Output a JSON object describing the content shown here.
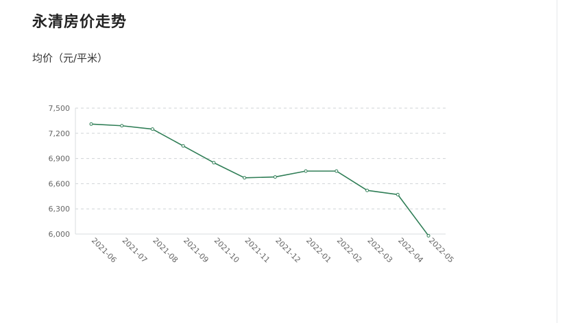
{
  "header": {
    "title": "永清房价走势",
    "unit_label": "均价（元/平米）"
  },
  "colors": {
    "line": "#2e7d55",
    "grid": "#cfd3d6",
    "axis": "#d8dcdf",
    "text": "#666666"
  },
  "chart_data": {
    "type": "line",
    "title": "永清房价走势",
    "ylabel": "均价（元/平米）",
    "xlabel": "",
    "ylim": [
      6000,
      7500
    ],
    "yticks": [
      6000,
      6300,
      6600,
      6900,
      7200,
      7500
    ],
    "ytick_labels": [
      "6,000",
      "6,300",
      "6,600",
      "6,900",
      "7,200",
      "7,500"
    ],
    "grid": true,
    "categories": [
      "2021-06",
      "2021-07",
      "2021-08",
      "2021-09",
      "2021-10",
      "2021-11",
      "2021-12",
      "2022-01",
      "2022-02",
      "2022-03",
      "2022-04",
      "2022-05"
    ],
    "series": [
      {
        "values": [
          7310,
          7290,
          7250,
          7050,
          6850,
          6670,
          6680,
          6750,
          6750,
          6520,
          6470,
          5980
        ]
      }
    ]
  }
}
